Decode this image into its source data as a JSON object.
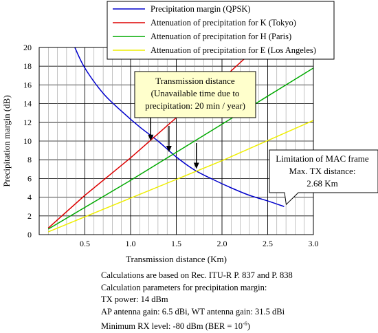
{
  "chart_data": {
    "type": "line",
    "title": "",
    "xlabel": "Transmission distance (Km)",
    "ylabel": "Precipitation margin (dB)",
    "xlim": [
      0,
      3.0
    ],
    "ylim": [
      0,
      20
    ],
    "xticks": [
      "0.5",
      "1.0",
      "1.5",
      "2.0",
      "2.5",
      "3.0"
    ],
    "yticks": [
      "0",
      "2",
      "4",
      "6",
      "8",
      "10",
      "12",
      "14",
      "16",
      "18",
      "20"
    ],
    "grid": true,
    "legend_position": "top-right",
    "series": [
      {
        "name": "Precipitation margin (QPSK)",
        "color": "#0000cc",
        "points": [
          [
            0.39,
            20.0
          ],
          [
            0.5,
            17.8
          ],
          [
            0.7,
            15.1
          ],
          [
            0.9,
            13.2
          ],
          [
            1.1,
            11.5
          ],
          [
            1.3,
            10.0
          ],
          [
            1.5,
            8.3
          ],
          [
            1.7,
            6.9
          ],
          [
            1.9,
            5.9
          ],
          [
            2.1,
            5.0
          ],
          [
            2.3,
            4.2
          ],
          [
            2.5,
            3.6
          ],
          [
            2.68,
            3.0
          ]
        ]
      },
      {
        "name": "Attenuation of precipitation for K (Tokyo)",
        "color": "#dd0000",
        "points": [
          [
            0.1,
            0.7
          ],
          [
            0.5,
            4.2
          ],
          [
            1.0,
            8.2
          ],
          [
            1.5,
            12.5
          ],
          [
            2.0,
            16.6
          ],
          [
            2.38,
            20.0
          ]
        ]
      },
      {
        "name": "Attenuation of precipitation for H (Paris)",
        "color": "#00aa00",
        "points": [
          [
            0.1,
            0.6
          ],
          [
            1.0,
            5.8
          ],
          [
            2.0,
            11.8
          ],
          [
            3.0,
            17.8
          ]
        ]
      },
      {
        "name": "Attenuation of precipitation for E (Los Angeles)",
        "color": "#eeee00",
        "points": [
          [
            0.1,
            0.3
          ],
          [
            1.0,
            3.9
          ],
          [
            2.0,
            7.9
          ],
          [
            3.0,
            12.2
          ]
        ]
      }
    ],
    "annotations": {
      "box": [
        "Transmission distance",
        "(Unavailable time due to",
        "precipitation: 20 min / year)"
      ],
      "arrows_at": [
        [
          1.22,
          9.8
        ],
        [
          1.42,
          8.6
        ],
        [
          1.72,
          6.8
        ]
      ],
      "callout": [
        "Limitation of MAC frame",
        "Max. TX distance:",
        "2.68 Km"
      ],
      "callout_point": [
        2.68,
        3.0
      ]
    }
  },
  "notes": [
    "Calculations are based on Rec. ITU-R P. 837 and P. 838",
    "Calculation parameters for precipitation margin:",
    "TX power: 14 dBm",
    "AP antenna gain: 6.5 dBi, WT antenna gain: 31.5 dBi"
  ],
  "notes_last": {
    "text": "Minimum RX level: -80 dBm (BER = 10",
    "sup": "-6",
    "tail": ")"
  }
}
